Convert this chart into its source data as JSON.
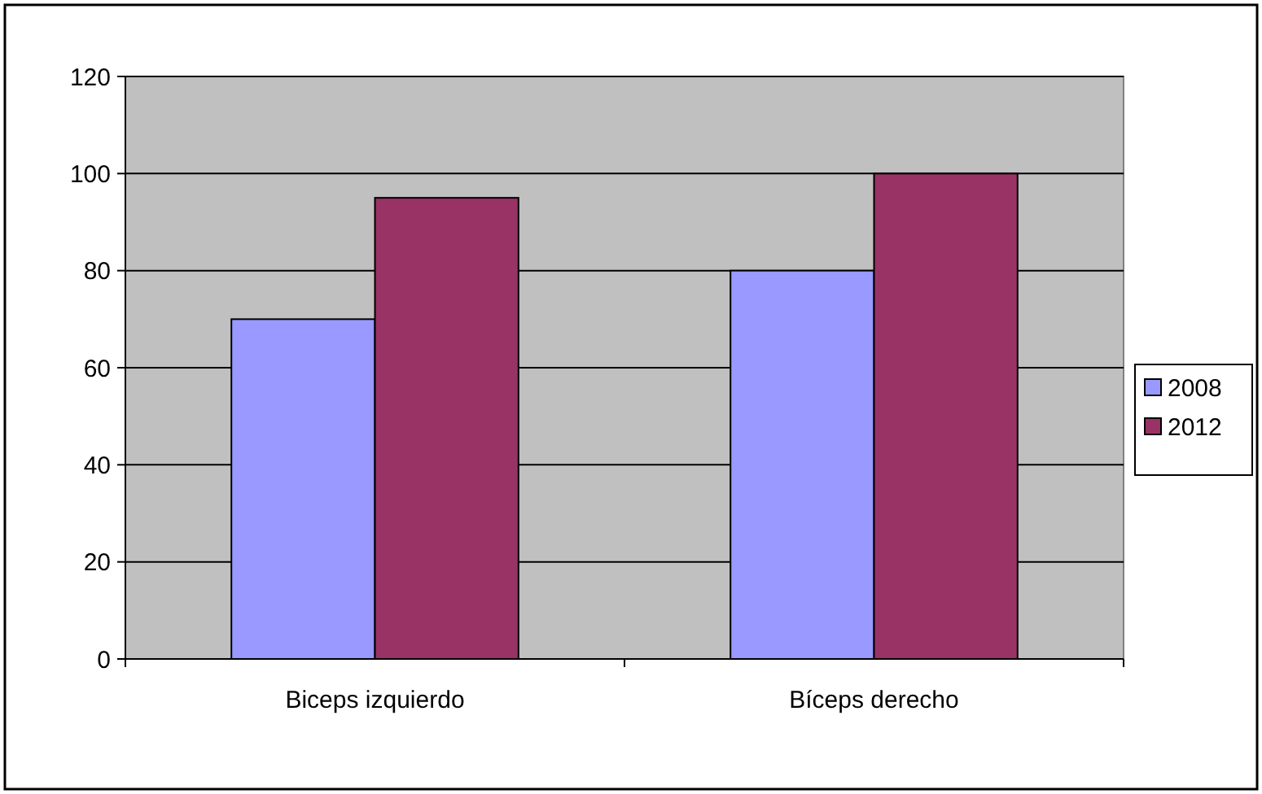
{
  "chart_data": {
    "type": "bar",
    "categories": [
      "Biceps izquierdo",
      "Bíceps derecho"
    ],
    "series": [
      {
        "name": "2008",
        "color": "#9999ff",
        "values": [
          70,
          80
        ]
      },
      {
        "name": "2012",
        "color": "#993366",
        "values": [
          95,
          100
        ]
      }
    ],
    "ylim": [
      0,
      120
    ],
    "yticks": [
      0,
      20,
      40,
      60,
      80,
      100,
      120
    ],
    "grid": "y",
    "legend": "right"
  }
}
